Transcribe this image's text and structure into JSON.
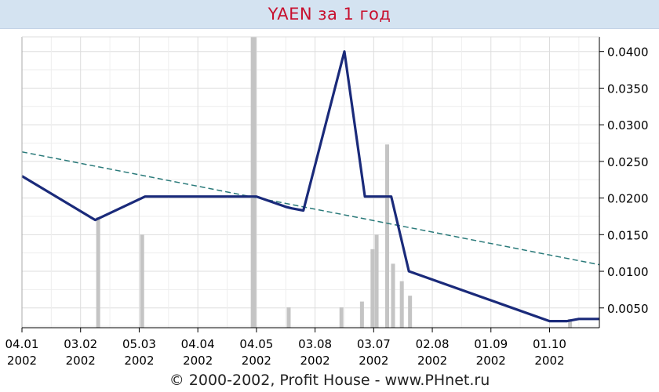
{
  "title": "YAEN за 1 год",
  "footer": "© 2000-2002, Profit House - www.PHnet.ru",
  "colors": {
    "title": "#c8102e",
    "title_bg": "#d4e3f1",
    "price_line": "#1a2a7a",
    "trend_line": "#2a7a7a",
    "volume_bars": "#c4c4c4",
    "grid": "#dddddd"
  },
  "chart_data": {
    "type": "line",
    "title": "YAEN за 1 год",
    "x_ticks": [
      {
        "d": "04.01",
        "y": "2002"
      },
      {
        "d": "03.02",
        "y": "2002"
      },
      {
        "d": "05.03",
        "y": "2002"
      },
      {
        "d": "04.04",
        "y": "2002"
      },
      {
        "d": "04.05",
        "y": "2002"
      },
      {
        "d": "03.08",
        "y": "2002"
      },
      {
        "d": "03.07",
        "y": "2002"
      },
      {
        "d": "02.08",
        "y": "2002"
      },
      {
        "d": "01.09",
        "y": "2002"
      },
      {
        "d": "01.10",
        "y": "2002"
      }
    ],
    "y_ticks": [
      "0.0400",
      "0.0350",
      "0.0300",
      "0.0250",
      "0.0200",
      "0.0150",
      "0.0100",
      "0.0050"
    ],
    "ylim": [
      0.0023,
      0.042
    ],
    "y_axis_position": "right",
    "grid": true,
    "price_series": [
      {
        "x": 0.0,
        "y": 0.023
      },
      {
        "x": 1.25,
        "y": 0.017
      },
      {
        "x": 2.1,
        "y": 0.0202
      },
      {
        "x": 4.0,
        "y": 0.0202
      },
      {
        "x": 4.5,
        "y": 0.0188
      },
      {
        "x": 4.6,
        "y": 0.0186
      },
      {
        "x": 4.8,
        "y": 0.0183
      },
      {
        "x": 5.5,
        "y": 0.04
      },
      {
        "x": 5.85,
        "y": 0.0202
      },
      {
        "x": 6.3,
        "y": 0.0202
      },
      {
        "x": 6.6,
        "y": 0.01
      },
      {
        "x": 9.0,
        "y": 0.0032
      },
      {
        "x": 9.3,
        "y": 0.0032
      },
      {
        "x": 9.5,
        "y": 0.0035
      },
      {
        "x": 9.85,
        "y": 0.0035
      }
    ],
    "trend_series": [
      {
        "x": 0.0,
        "y": 0.0263
      },
      {
        "x": 9.85,
        "y": 0.0109
      }
    ],
    "volume_bars": [
      {
        "x": 1.3,
        "v": 0.38
      },
      {
        "x": 2.05,
        "v": 0.32
      },
      {
        "x": 3.95,
        "v": 1.0
      },
      {
        "x": 4.55,
        "v": 0.07
      },
      {
        "x": 5.45,
        "v": 0.07
      },
      {
        "x": 5.8,
        "v": 0.09
      },
      {
        "x": 5.98,
        "v": 0.27
      },
      {
        "x": 6.05,
        "v": 0.32
      },
      {
        "x": 6.23,
        "v": 0.63
      },
      {
        "x": 6.33,
        "v": 0.22
      },
      {
        "x": 6.48,
        "v": 0.16
      },
      {
        "x": 6.62,
        "v": 0.11
      },
      {
        "x": 9.35,
        "v": 0.03
      }
    ],
    "xlim": [
      0,
      9.85
    ]
  }
}
